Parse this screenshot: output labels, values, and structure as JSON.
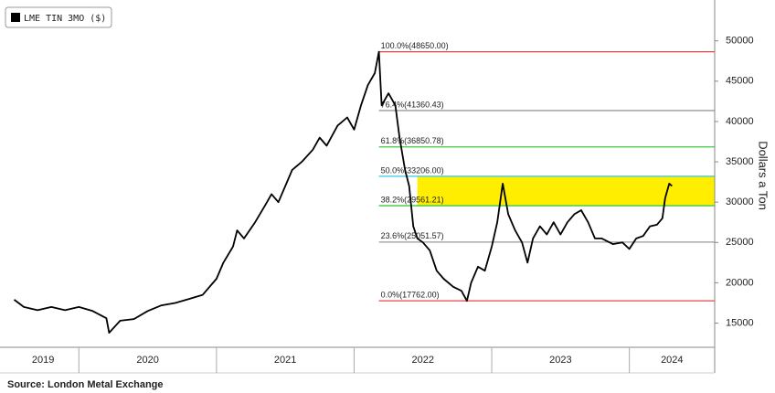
{
  "chart_data": {
    "type": "line",
    "source": "Source: London Metal Exchange",
    "y_label": "Dollars a Ton",
    "legend": "top-left",
    "series": [
      {
        "name": "LME TIN 3MO ($)",
        "color": "#000000",
        "x": [
          2019.53,
          2019.6,
          2019.7,
          2019.8,
          2019.9,
          2020.0,
          2020.1,
          2020.2,
          2020.22,
          2020.3,
          2020.4,
          2020.5,
          2020.6,
          2020.7,
          2020.8,
          2020.9,
          2021.0,
          2021.05,
          2021.12,
          2021.15,
          2021.2,
          2021.28,
          2021.35,
          2021.4,
          2021.45,
          2021.5,
          2021.55,
          2021.62,
          2021.7,
          2021.75,
          2021.8,
          2021.88,
          2021.95,
          2022.0,
          2022.05,
          2022.1,
          2022.15,
          2022.18,
          2022.2,
          2022.25,
          2022.3,
          2022.33,
          2022.37,
          2022.4,
          2022.43,
          2022.46,
          2022.5,
          2022.55,
          2022.6,
          2022.65,
          2022.72,
          2022.78,
          2022.82,
          2022.85,
          2022.9,
          2022.95,
          2023.0,
          2023.04,
          2023.08,
          2023.12,
          2023.17,
          2023.22,
          2023.26,
          2023.3,
          2023.35,
          2023.4,
          2023.45,
          2023.5,
          2023.55,
          2023.6,
          2023.65,
          2023.7,
          2023.75,
          2023.8,
          2023.88,
          2023.95,
          2024.0,
          2024.05,
          2024.1,
          2024.15,
          2024.2,
          2024.24,
          2024.26,
          2024.29,
          2024.31
        ],
        "values": [
          17900,
          17000,
          16600,
          17000,
          16600,
          17000,
          16500,
          15600,
          13800,
          15300,
          15500,
          16500,
          17200,
          17500,
          18000,
          18500,
          20500,
          22500,
          24500,
          26500,
          25500,
          27500,
          29500,
          31000,
          30000,
          32000,
          34000,
          35000,
          36500,
          38000,
          37000,
          39500,
          40500,
          39000,
          42000,
          44500,
          46000,
          48650,
          42000,
          43500,
          42000,
          38000,
          34000,
          32000,
          27000,
          25500,
          25000,
          24000,
          21500,
          20500,
          19500,
          19000,
          17762,
          20000,
          22000,
          21500,
          24500,
          27500,
          32300,
          28500,
          26500,
          25000,
          22500,
          25500,
          27000,
          26000,
          27500,
          26000,
          27500,
          28500,
          29000,
          27500,
          25500,
          25500,
          24800,
          25000,
          24200,
          25500,
          25800,
          27000,
          27200,
          28000,
          30500,
          32300,
          32000
        ]
      }
    ],
    "xlim": [
      2019.48,
      2024.62
    ],
    "ylim": [
      12000,
      54500
    ],
    "yticks": [
      15000,
      20000,
      25000,
      30000,
      35000,
      40000,
      45000,
      50000
    ],
    "xticks": [
      {
        "value": 2019.74,
        "label": "2019"
      },
      {
        "value": 2020.5,
        "label": "2020"
      },
      {
        "value": 2021.5,
        "label": "2021"
      },
      {
        "value": 2022.5,
        "label": "2022"
      },
      {
        "value": 2023.5,
        "label": "2023"
      },
      {
        "value": 2024.31,
        "label": "2024"
      }
    ],
    "x_separators": [
      2020,
      2021,
      2022,
      2023,
      2024
    ],
    "levels_start": 2022.18,
    "levels": [
      {
        "label": "100.0%(48650.00)",
        "value": 48650,
        "color": "#e8434a"
      },
      {
        "label": "76.4%(41360.43)",
        "value": 41360.43,
        "color": "#9a9a9a"
      },
      {
        "label": "61.8%(36850.78)",
        "value": 36850.78,
        "color": "#3ec83e"
      },
      {
        "label": "50.0%(33206.00)",
        "value": 33206,
        "color": "#34c6e8"
      },
      {
        "label": "38.2%(29561.21)",
        "value": 29561.21,
        "color": "#3ec83e"
      },
      {
        "label": "23.6%(25051.57)",
        "value": 25051.57,
        "color": "#9a9a9a"
      },
      {
        "label": "0.0%(17762.00)",
        "value": 17762,
        "color": "#e8434a"
      }
    ],
    "highlight": {
      "from": 29561.21,
      "to": 33206,
      "x_start": 2022.46,
      "color": "#ffee00"
    }
  }
}
